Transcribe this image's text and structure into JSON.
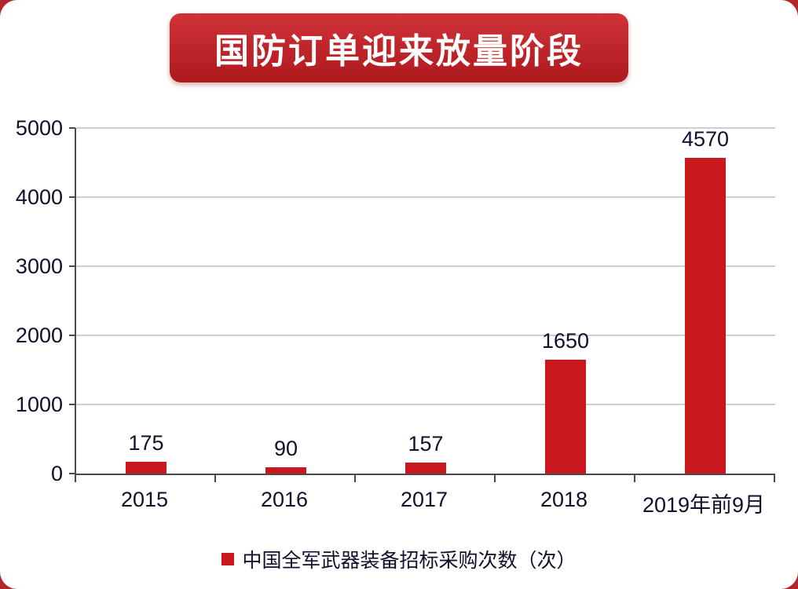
{
  "page": {
    "background_color": "#b5262b",
    "card_color": "#ffffff"
  },
  "title": {
    "text": "国防订单迎来放量阶段",
    "bg_color_top": "#cf3338",
    "bg_color_bottom": "#ae191e",
    "text_color": "#ffffff"
  },
  "chart_data": {
    "type": "bar",
    "title": "国防订单迎来放量阶段",
    "categories": [
      "2015",
      "2016",
      "2017",
      "2018",
      "2019年前9月"
    ],
    "values": [
      175,
      90,
      157,
      1650,
      4570
    ],
    "value_labels": [
      "175",
      "90",
      "157",
      "1650",
      "4570"
    ],
    "xlabel": "",
    "ylabel": "",
    "ylim": [
      0,
      5000
    ],
    "yticks": [
      0,
      1000,
      2000,
      3000,
      4000,
      5000
    ],
    "grid": true,
    "bar_color": "#c9181e",
    "axis_text_color": "#10102c",
    "legend": {
      "position": "bottom",
      "marker_color": "#c9181e",
      "label": "中国全军武器装备招标采购次数（次）"
    }
  }
}
